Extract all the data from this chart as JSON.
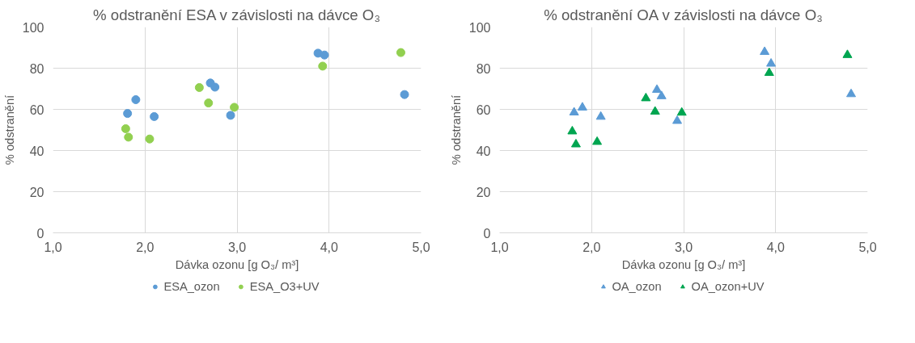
{
  "chart_data": [
    {
      "type": "scatter",
      "title": "% odstranění ESA v závislosti na dávce O₃",
      "xlabel": "Dávka ozonu [g O₃/ m³]",
      "ylabel": "% odstranění",
      "marker": "circle",
      "grid": true,
      "legend": "bottom",
      "xlim": [
        1,
        5
      ],
      "xticks": [
        {
          "value": 1,
          "label": "1,0"
        },
        {
          "value": 2,
          "label": "2,0"
        },
        {
          "value": 3,
          "label": "3,0"
        },
        {
          "value": 4,
          "label": "4,0"
        },
        {
          "value": 5,
          "label": "5,0"
        }
      ],
      "ylim": [
        0,
        100
      ],
      "yticks": [
        0,
        20,
        40,
        60,
        80,
        100
      ],
      "series": [
        {
          "name": "ESA_ozon",
          "color": "#5b9bd5",
          "x": [
            1.81,
            1.9,
            2.1,
            2.71,
            2.76,
            2.93,
            3.88,
            3.95,
            4.82
          ],
          "values": [
            58.0,
            64.7,
            56.5,
            72.8,
            70.8,
            57.1,
            87.3,
            86.4,
            67.2
          ]
        },
        {
          "name": "ESA_O3+UV",
          "color": "#92d050",
          "x": [
            1.79,
            1.82,
            2.05,
            2.59,
            2.69,
            2.97,
            3.93,
            4.78
          ],
          "values": [
            50.6,
            46.5,
            45.6,
            70.6,
            63.1,
            61.0,
            81.0,
            87.6
          ]
        }
      ]
    },
    {
      "type": "scatter",
      "title": "% odstranění OA v závislosti na dávce O₃",
      "xlabel": "Dávka ozonu [g O₃/ m³]",
      "ylabel": "% odstranění",
      "marker": "triangle",
      "grid": true,
      "legend": "bottom",
      "xlim": [
        1,
        5
      ],
      "xticks": [
        {
          "value": 1,
          "label": "1,0"
        },
        {
          "value": 2,
          "label": "2,0"
        },
        {
          "value": 3,
          "label": "3,0"
        },
        {
          "value": 4,
          "label": "4,0"
        },
        {
          "value": 5,
          "label": "5,0"
        }
      ],
      "ylim": [
        0,
        100
      ],
      "yticks": [
        0,
        20,
        40,
        60,
        80,
        100
      ],
      "series": [
        {
          "name": "OA_ozon",
          "color": "#5b9bd5",
          "x": [
            1.81,
            1.9,
            2.1,
            2.71,
            2.76,
            2.93,
            3.88,
            3.95,
            4.82
          ],
          "values": [
            58.5,
            60.9,
            56.4,
            69.5,
            66.4,
            54.4,
            87.9,
            82.2,
            67.4
          ]
        },
        {
          "name": "OA_ozon+UV",
          "color": "#00a550",
          "x": [
            1.79,
            1.83,
            2.06,
            2.59,
            2.69,
            2.98,
            3.93,
            4.78
          ],
          "values": [
            49.3,
            43.0,
            44.2,
            65.4,
            58.9,
            58.4,
            77.7,
            86.4
          ]
        }
      ]
    }
  ]
}
